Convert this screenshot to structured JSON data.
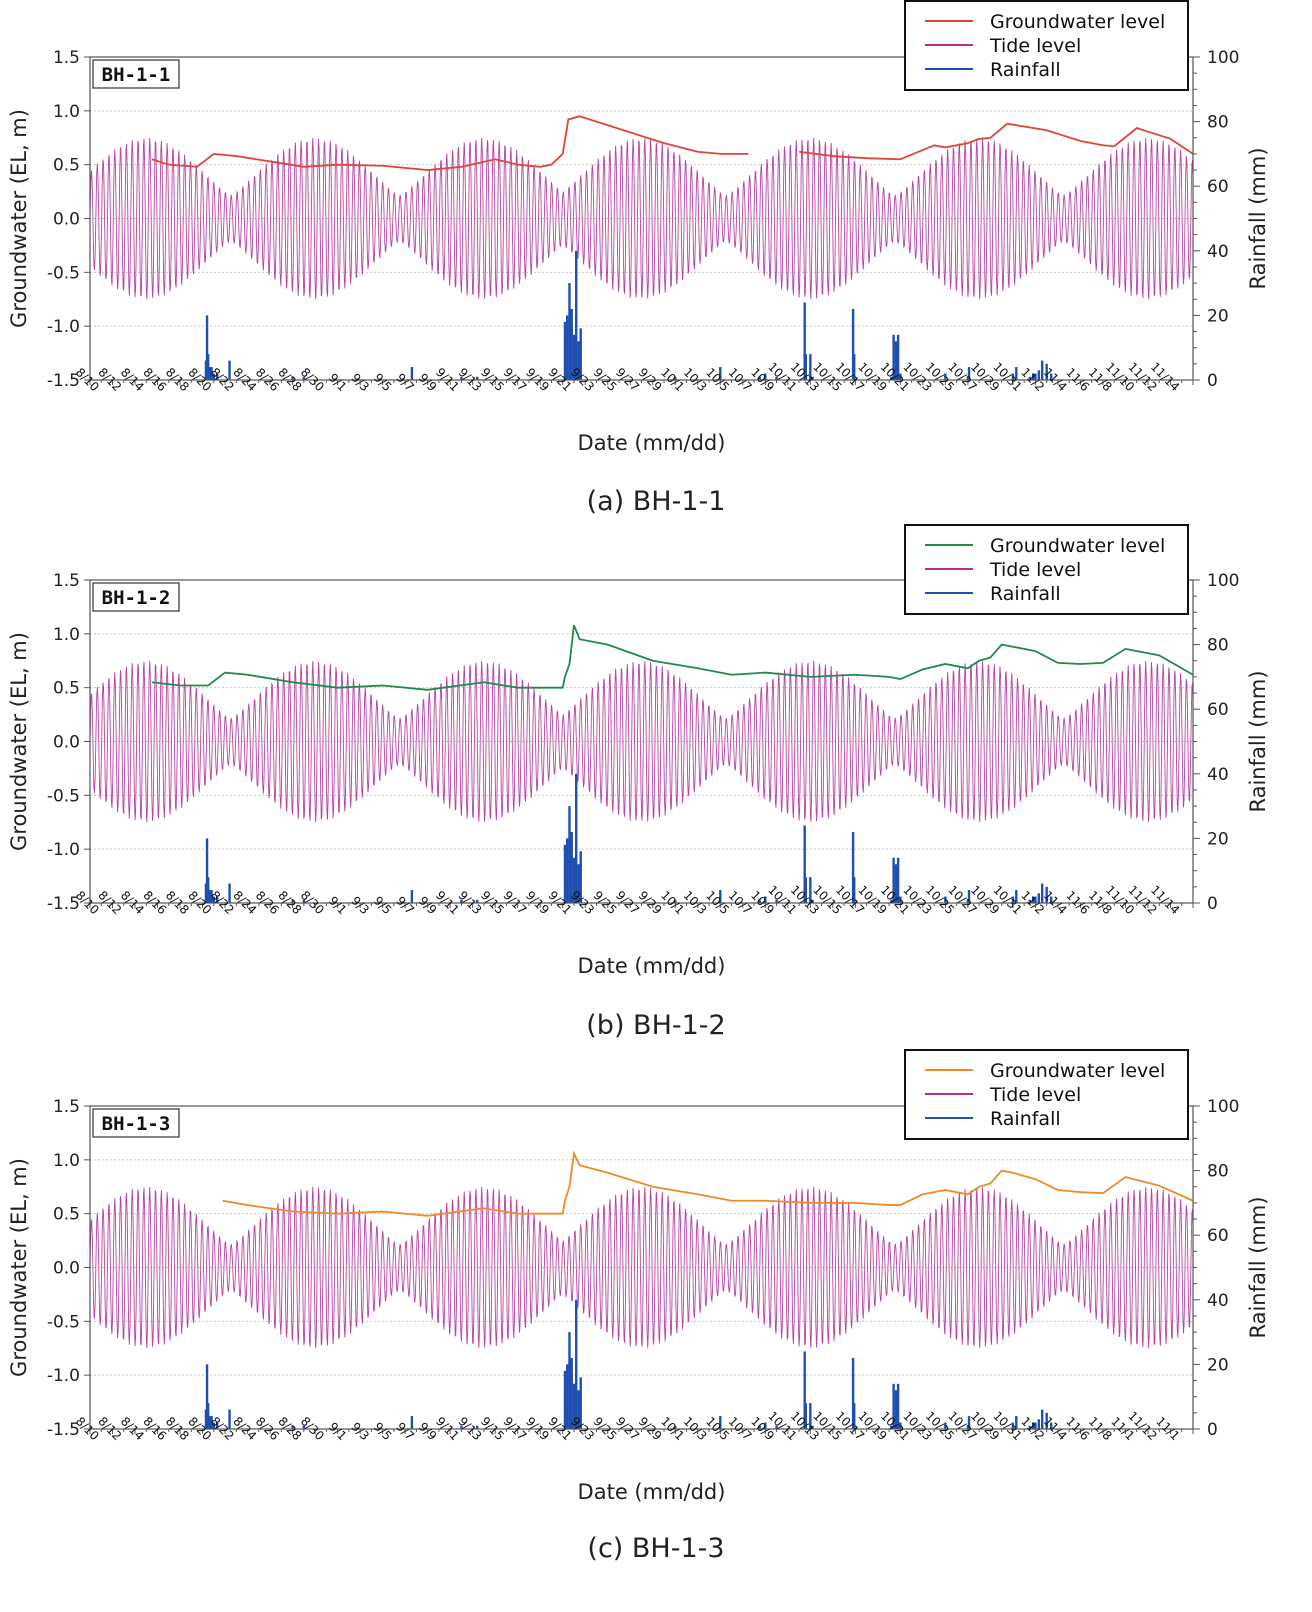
{
  "colors": {
    "tide": "#b0309a",
    "rain": "#1f4fb0",
    "grid": "#c8c8c8",
    "axis": "#555555"
  },
  "chart_data": [
    {
      "type": "line",
      "panel_label": "BH-1-1",
      "caption": "(a) BH-1-1",
      "xlabel": "Date (mm/dd)",
      "ylabel": "Groundwater (EL, m)",
      "y2label": "Rainfall (mm)",
      "ylim": [
        -1.5,
        1.5
      ],
      "y2lim": [
        0,
        100
      ],
      "yticks": [
        "1.5",
        "1.0",
        "0.5",
        "0.0",
        "-0.5",
        "-1.0",
        "-1.5"
      ],
      "y2ticks": [
        "100",
        "80",
        "60",
        "40",
        "20",
        "0"
      ],
      "grid": true,
      "legend_position": "top-right",
      "legend": [
        "Groundwater level",
        "Tide level",
        "Rainfall"
      ],
      "gw_color": "#e0443a",
      "x_days": [
        0,
        98
      ],
      "xticks": [
        "8/10",
        "8/12",
        "8/14",
        "8/16",
        "8/18",
        "8/20",
        "8/22",
        "8/24",
        "8/26",
        "8/28",
        "8/30",
        "9/1",
        "9/3",
        "9/5",
        "9/7",
        "9/9",
        "9/11",
        "9/13",
        "9/15",
        "9/17",
        "9/19",
        "9/21",
        "9/23",
        "9/25",
        "9/27",
        "9/29",
        "10/1",
        "10/3",
        "10/5",
        "10/7",
        "10/9",
        "10/11",
        "10/13",
        "10/15",
        "10/17",
        "10/19",
        "10/21",
        "10/23",
        "10/25",
        "10/27",
        "10/29",
        "10/31",
        "11/2",
        "11/4",
        "11/6",
        "11/8",
        "11/10",
        "11/12",
        "11/14"
      ],
      "groundwater": {
        "x": [
          5.5,
          7,
          9.5,
          11,
          13,
          16,
          19,
          22,
          26,
          30,
          33,
          36,
          38,
          40,
          41,
          42,
          42.5,
          43.5,
          45,
          48,
          51,
          54,
          56,
          58.5,
          59.5,
          63,
          66,
          69,
          72,
          75,
          76,
          78,
          79,
          80,
          81.5,
          85,
          88,
          90,
          91,
          93,
          96,
          98
        ],
        "y": [
          0.55,
          0.5,
          0.48,
          0.6,
          0.58,
          0.53,
          0.48,
          0.5,
          0.49,
          0.45,
          0.48,
          0.55,
          0.5,
          0.48,
          0.5,
          0.6,
          0.92,
          0.95,
          0.9,
          0.8,
          0.7,
          0.62,
          0.6,
          0.6,
          null,
          0.62,
          0.58,
          0.56,
          0.55,
          0.68,
          0.66,
          0.7,
          0.74,
          0.75,
          0.88,
          0.82,
          0.72,
          0.68,
          0.67,
          0.84,
          0.74,
          0.6
        ]
      },
      "rainfall": {
        "x": [
          10.3,
          10.4,
          10.5,
          10.6,
          10.8,
          11,
          11.3,
          12.4,
          18,
          19,
          28.6,
          33,
          34.4,
          42.2,
          42.4,
          42.6,
          42.8,
          43,
          43.2,
          43.4,
          43.6,
          52,
          56,
          59.5,
          60,
          61,
          63.5,
          63.6,
          64,
          64.2,
          67.8,
          67.9,
          71.2,
          71.4,
          71.6,
          71.8,
          72,
          76,
          78,
          78.1,
          82,
          82.3,
          83.5,
          83.8,
          84,
          84.3,
          84.6,
          85,
          85.4
        ],
        "v": [
          6,
          20,
          8,
          4,
          4,
          2,
          2,
          6,
          1,
          1,
          4,
          1,
          1,
          18,
          20,
          30,
          22,
          14,
          40,
          12,
          16,
          1,
          4,
          1,
          2,
          1,
          24,
          8,
          8,
          1,
          22,
          8,
          1,
          14,
          12,
          14,
          2,
          2,
          1,
          4,
          2,
          4,
          1,
          2,
          2,
          3,
          6,
          5,
          2
        ]
      },
      "tide_model": {
        "mean": 0.0,
        "min_amp": 0.22,
        "max_amp": 0.75,
        "springs": [
          5,
          20,
          35,
          49,
          64,
          79,
          94
        ],
        "spring_halfwidth": 7.4,
        "semi_diurnal_period": 0.5175
      }
    },
    {
      "type": "line",
      "panel_label": "BH-1-2",
      "caption": "(b) BH-1-2",
      "xlabel": "Date (mm/dd)",
      "ylabel": "Groundwater (EL, m)",
      "y2label": "Rainfall (mm)",
      "ylim": [
        -1.5,
        1.5
      ],
      "y2lim": [
        0,
        100
      ],
      "yticks": [
        "1.5",
        "1.0",
        "0.5",
        "0.0",
        "-0.5",
        "-1.0",
        "-1.5"
      ],
      "y2ticks": [
        "100",
        "80",
        "60",
        "40",
        "20",
        "0"
      ],
      "grid": true,
      "legend_position": "top-right",
      "legend": [
        "Groundwater level",
        "Tide level",
        "Rainfall"
      ],
      "gw_color": "#1e8a4e",
      "x_days": [
        0,
        98
      ],
      "xticks": [
        "8/10",
        "8/12",
        "8/14",
        "8/16",
        "8/18",
        "8/20",
        "8/22",
        "8/24",
        "8/26",
        "8/28",
        "8/30",
        "9/1",
        "9/3",
        "9/5",
        "9/7",
        "9/9",
        "9/11",
        "9/13",
        "9/15",
        "9/17",
        "9/19",
        "9/21",
        "9/23",
        "9/25",
        "9/27",
        "9/29",
        "10/1",
        "10/3",
        "10/5",
        "10/7",
        "10/9",
        "10/11",
        "10/13",
        "10/15",
        "10/17",
        "10/19",
        "10/21",
        "10/23",
        "10/25",
        "10/27",
        "10/29",
        "10/31",
        "11/2",
        "11/4",
        "11/6",
        "11/8",
        "11/10",
        "11/12",
        "11/14"
      ],
      "groundwater": {
        "x": [
          5.5,
          8,
          10.5,
          12,
          14,
          18,
          22,
          26,
          30,
          35,
          38,
          40,
          42,
          42.2,
          42.6,
          43,
          43.5,
          46,
          50,
          54,
          57,
          60,
          64,
          68,
          71,
          72,
          74,
          76,
          78,
          79,
          80,
          81,
          82,
          84,
          86,
          88,
          90,
          92,
          95,
          98
        ],
        "y": [
          0.55,
          0.52,
          0.52,
          0.64,
          0.62,
          0.55,
          0.5,
          0.52,
          0.48,
          0.55,
          0.5,
          0.5,
          0.5,
          0.6,
          0.72,
          1.08,
          0.95,
          0.9,
          0.75,
          0.68,
          0.62,
          0.64,
          0.6,
          0.62,
          0.6,
          0.58,
          0.67,
          0.72,
          0.68,
          0.75,
          0.78,
          0.9,
          0.88,
          0.84,
          0.73,
          0.72,
          0.73,
          0.86,
          0.8,
          0.62
        ]
      },
      "rainfall": {
        "x": [
          10.3,
          10.4,
          10.5,
          10.6,
          10.8,
          11,
          11.3,
          12.4,
          18,
          19,
          28.6,
          33,
          34.4,
          42.2,
          42.4,
          42.6,
          42.8,
          43,
          43.2,
          43.4,
          43.6,
          52,
          56,
          59.5,
          60,
          61,
          63.5,
          63.6,
          64,
          64.2,
          67.8,
          67.9,
          71.2,
          71.4,
          71.6,
          71.8,
          72,
          76,
          78,
          78.1,
          82,
          82.3,
          83.5,
          83.8,
          84,
          84.3,
          84.6,
          85,
          85.4
        ],
        "v": [
          6,
          20,
          8,
          4,
          4,
          2,
          2,
          6,
          1,
          1,
          4,
          1,
          1,
          18,
          20,
          30,
          22,
          14,
          40,
          12,
          16,
          1,
          4,
          1,
          2,
          1,
          24,
          8,
          8,
          1,
          22,
          8,
          1,
          14,
          12,
          14,
          2,
          2,
          1,
          4,
          2,
          4,
          1,
          2,
          2,
          3,
          6,
          5,
          2
        ]
      },
      "tide_model": {
        "mean": 0.0,
        "min_amp": 0.22,
        "max_amp": 0.75,
        "springs": [
          5,
          20,
          35,
          49,
          64,
          79,
          94
        ],
        "spring_halfwidth": 7.4,
        "semi_diurnal_period": 0.5175
      }
    },
    {
      "type": "line",
      "panel_label": "BH-1-3",
      "caption": "(c) BH-1-3",
      "xlabel": "Date (mm/dd)",
      "ylabel": "Groundwater (EL, m)",
      "y2label": "Rainfall (mm)",
      "ylim": [
        -1.5,
        1.5
      ],
      "y2lim": [
        0,
        100
      ],
      "yticks": [
        "1.5",
        "1.0",
        "0.5",
        "0.0",
        "-0.5",
        "-1.0",
        "-1.5"
      ],
      "y2ticks": [
        "100",
        "80",
        "60",
        "40",
        "20",
        "0"
      ],
      "grid": true,
      "legend_position": "top-right",
      "legend": [
        "Groundwater level",
        "Tide level",
        "Rainfall"
      ],
      "gw_color": "#ee8a2a",
      "x_days": [
        0,
        98
      ],
      "xticks": [
        "8/10",
        "8/12",
        "8/14",
        "8/16",
        "8/18",
        "8/20",
        "8/22",
        "8/24",
        "8/26",
        "8/28",
        "8/30",
        "9/1",
        "9/3",
        "9/5",
        "9/7",
        "9/9",
        "9/11",
        "9/13",
        "9/15",
        "9/17",
        "9/19",
        "9/21",
        "9/23",
        "9/25",
        "9/27",
        "9/29",
        "10/1",
        "10/3",
        "10/5",
        "10/7",
        "10/9",
        "10/11",
        "10/13",
        "10/15",
        "10/17",
        "10/19",
        "10/21",
        "10/23",
        "10/25",
        "10/27",
        "10/29",
        "10/31",
        "11/2",
        "11/4",
        "11/6",
        "11/8",
        "11/1",
        "11/12",
        "11/1"
      ],
      "groundwater": {
        "x": [
          11.8,
          14,
          18,
          22,
          26,
          30,
          35,
          38,
          40,
          42,
          42.2,
          42.6,
          43,
          43.5,
          46,
          50,
          54,
          57,
          60,
          64,
          68,
          71,
          72,
          74,
          76,
          78,
          79,
          80,
          81,
          82,
          84,
          86,
          88,
          90,
          92,
          95,
          98
        ],
        "y": [
          0.62,
          0.58,
          0.52,
          0.5,
          0.52,
          0.48,
          0.55,
          0.5,
          0.5,
          0.5,
          0.62,
          0.75,
          1.06,
          0.95,
          0.88,
          0.75,
          0.68,
          0.62,
          0.62,
          0.6,
          0.6,
          0.58,
          0.58,
          0.68,
          0.72,
          0.68,
          0.75,
          0.78,
          0.9,
          0.88,
          0.82,
          0.72,
          0.7,
          0.69,
          0.84,
          0.76,
          0.62
        ]
      },
      "rainfall": {
        "x": [
          10.3,
          10.4,
          10.5,
          10.6,
          10.8,
          11,
          11.3,
          12.4,
          18,
          19,
          28.6,
          33,
          34.4,
          42.2,
          42.4,
          42.6,
          42.8,
          43,
          43.2,
          43.4,
          43.6,
          52,
          56,
          59.5,
          60,
          61,
          63.5,
          63.6,
          64,
          64.2,
          67.8,
          67.9,
          71.2,
          71.4,
          71.6,
          71.8,
          72,
          76,
          78,
          78.1,
          82,
          82.3,
          83.5,
          83.8,
          84,
          84.3,
          84.6,
          85,
          85.4
        ],
        "v": [
          6,
          20,
          8,
          4,
          4,
          2,
          2,
          6,
          1,
          1,
          4,
          1,
          1,
          18,
          20,
          30,
          22,
          14,
          40,
          12,
          16,
          1,
          4,
          1,
          2,
          1,
          24,
          8,
          8,
          1,
          22,
          8,
          1,
          14,
          12,
          14,
          2,
          2,
          1,
          4,
          2,
          4,
          1,
          2,
          2,
          3,
          6,
          5,
          2
        ]
      },
      "tide_model": {
        "mean": 0.0,
        "min_amp": 0.22,
        "max_amp": 0.75,
        "springs": [
          5,
          20,
          35,
          49,
          64,
          79,
          94
        ],
        "spring_halfwidth": 7.4,
        "semi_diurnal_period": 0.5175
      }
    }
  ]
}
